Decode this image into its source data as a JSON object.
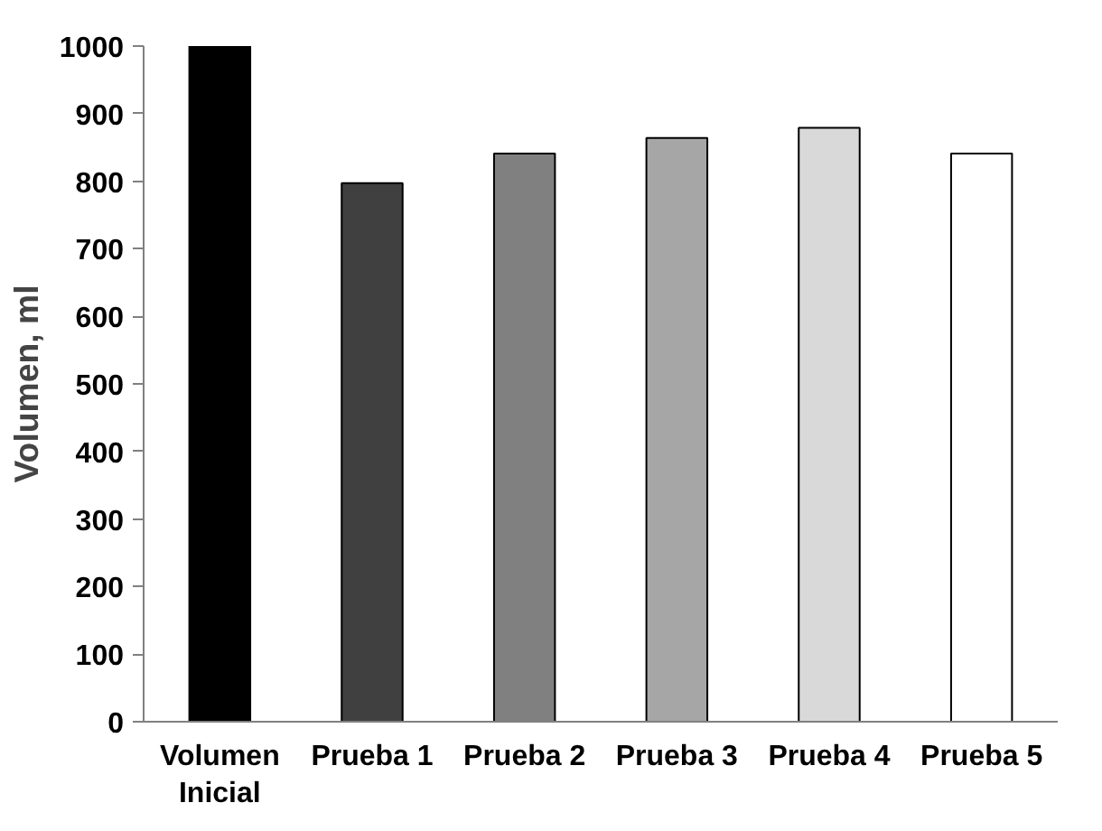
{
  "chart_data": {
    "type": "bar",
    "ylabel": "Volumen, ml",
    "categories": [
      "Volumen\nInicial",
      "Prueba 1",
      "Prueba 2",
      "Prueba 3",
      "Prueba 4",
      "Prueba 5"
    ],
    "values": [
      1000,
      797,
      841,
      864,
      879,
      841
    ],
    "colors": [
      "#000000",
      "#404040",
      "#808080",
      "#a6a6a6",
      "#d9d9d9",
      "#ffffff"
    ],
    "ylim": [
      0,
      1000
    ],
    "yticks": [
      0,
      100,
      200,
      300,
      400,
      500,
      600,
      700,
      800,
      900,
      1000
    ],
    "grid": false
  }
}
